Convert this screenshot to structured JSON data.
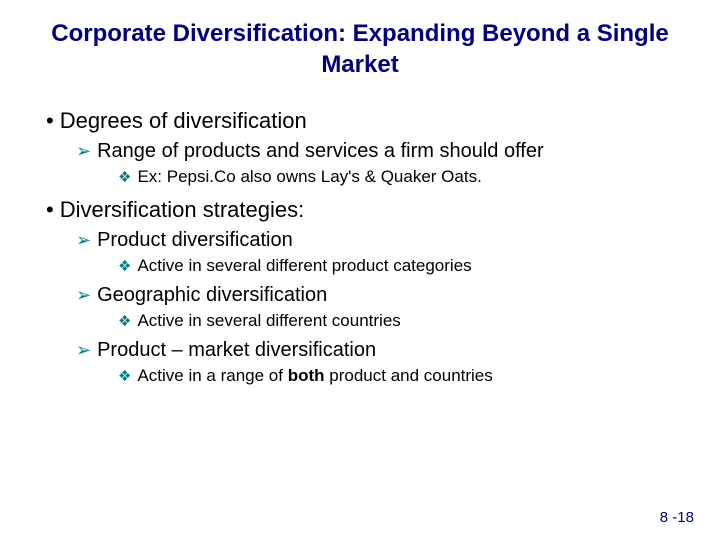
{
  "colors": {
    "title": "#000080",
    "bullet_accent": "#008080",
    "text": "#000000",
    "background": "#ffffff",
    "footer": "#000080"
  },
  "typography": {
    "title_fontsize": 24,
    "l1_fontsize": 22,
    "l2_fontsize": 20,
    "l3_fontsize": 17,
    "footer_fontsize": 15,
    "font_family": "Arial",
    "title_weight": "bold"
  },
  "title": "Corporate Diversification: Expanding Beyond a Single Market",
  "bullets": {
    "l1": "•",
    "l2": "➢",
    "l3": "❖"
  },
  "items": {
    "degrees": {
      "label": "Degrees of diversification",
      "range": {
        "label": "Range of products and services a firm should offer",
        "example_prefix": "Ex: ",
        "example_body": "Pepsi.Co also owns Lay's & Quaker Oats."
      }
    },
    "strategies": {
      "label": "Diversification strategies:",
      "product": {
        "label": "Product diversification",
        "detail": "Active in several different product categories"
      },
      "geographic": {
        "label": "Geographic diversification",
        "detail": "Active in several different countries"
      },
      "product_market": {
        "label": "Product – market diversification",
        "detail_pre": "Active in a range of ",
        "detail_bold": "both",
        "detail_post": " product and countries"
      }
    }
  },
  "footer": "8 -18"
}
